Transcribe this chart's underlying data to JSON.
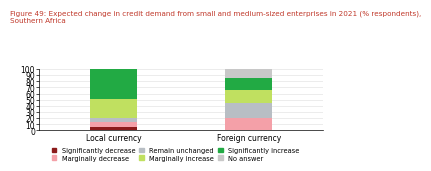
{
  "categories": [
    "Local currency",
    "Foreign currency"
  ],
  "series": [
    {
      "label": "Significantly decrease",
      "color": "#8B1A1A",
      "values": [
        5,
        0
      ]
    },
    {
      "label": "Marginally decrease",
      "color": "#F4A0A8",
      "values": [
        8,
        21
      ]
    },
    {
      "label": "Remain unchanged",
      "color": "#B8BEC4",
      "values": [
        8,
        24
      ]
    },
    {
      "label": "Marginally increase",
      "color": "#C0E060",
      "values": [
        30,
        20
      ]
    },
    {
      "label": "Significantly increase",
      "color": "#22AA44",
      "values": [
        49,
        21
      ]
    },
    {
      "label": "No answer",
      "color": "#C8C8C8",
      "values": [
        0,
        14
      ]
    }
  ],
  "ylim": [
    0,
    100
  ],
  "yticks": [
    0,
    10,
    20,
    30,
    40,
    50,
    60,
    70,
    80,
    90,
    100
  ],
  "title": "Figure 49: Expected change in credit demand from small and medium-sized enterprises in 2021 (% respondents),\nSouthern Africa",
  "title_color": "#C0392B",
  "title_fontsize": 5.2,
  "axis_fontsize": 5.5,
  "legend_fontsize": 4.8,
  "bar_width": 0.35,
  "background_color": "#FFFFFF"
}
